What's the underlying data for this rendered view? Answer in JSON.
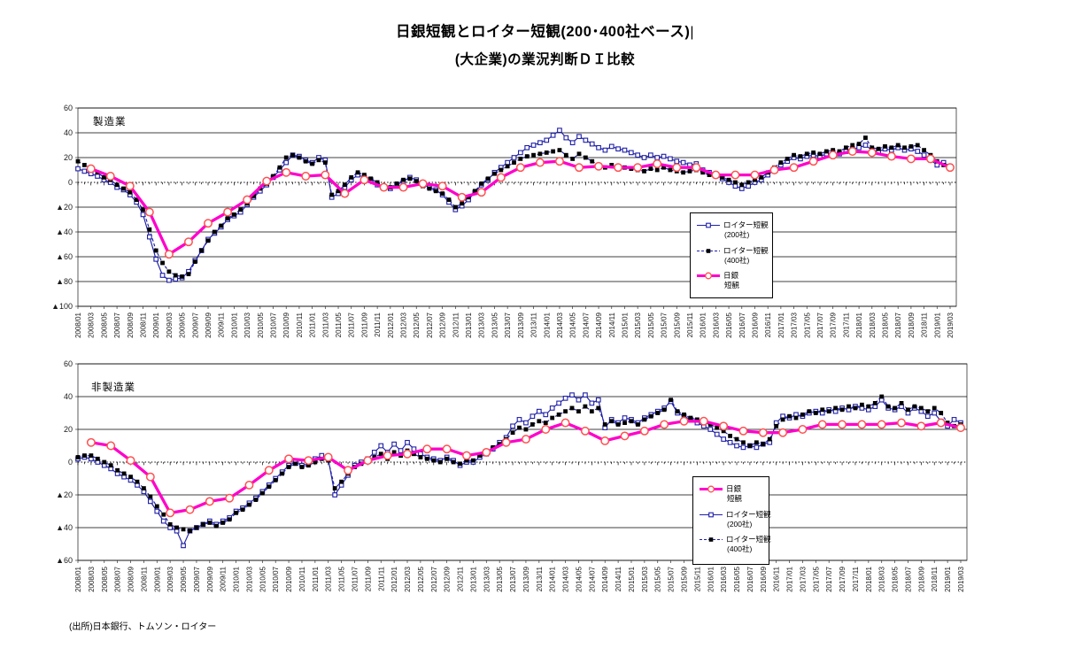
{
  "title": {
    "line1": "日銀短観とロイター短観(200･400社ベース)",
    "cursor": "|",
    "line2": "(大企業)の業況判断ＤＩ比較"
  },
  "source_note": "(出所)日本銀行、トムソン・ロイター",
  "colors": {
    "reuters_blue": "#1f1fa8",
    "reuters400_marker_black": "#000000",
    "boj_magenta": "#ff00cc",
    "boj_marker_stroke": "#ff5050",
    "axis_black": "#1a1a1a"
  },
  "chart_data": {
    "type": "line",
    "x_monthly_start": "2008/01",
    "x_monthly_end": "2019/03",
    "x_tick_labels": [
      "2008/01",
      "2008/03",
      "2008/05",
      "2008/07",
      "2008/09",
      "2008/11",
      "2009/01",
      "2009/03",
      "2009/05",
      "2009/07",
      "2009/09",
      "2009/11",
      "2010/01",
      "2010/03",
      "2010/05",
      "2010/07",
      "2010/09",
      "2010/11",
      "2011/01",
      "2011/03",
      "2011/05",
      "2011/07",
      "2011/09",
      "2011/11",
      "2012/01",
      "2012/03",
      "2012/05",
      "2012/07",
      "2012/09",
      "2012/11",
      "2013/01",
      "2013/03",
      "2013/05",
      "2013/07",
      "2013/09",
      "2013/11",
      "2014/01",
      "2014/03",
      "2014/05",
      "2014/07",
      "2014/09",
      "2014/11",
      "2015/01",
      "2015/03",
      "2015/05",
      "2015/07",
      "2015/09",
      "2015/11",
      "2016/01",
      "2016/03",
      "2016/05",
      "2016/07",
      "2016/09",
      "2016/11",
      "2017/01",
      "2017/03",
      "2017/05",
      "2017/07",
      "2017/09",
      "2017/11",
      "2018/01",
      "2018/03",
      "2018/05",
      "2018/07",
      "2018/09",
      "2018/11",
      "2019/01",
      "2019/03"
    ],
    "panels": [
      {
        "panel_label": "製造業",
        "ylim": [
          -100,
          60
        ],
        "y_tick_labels": [
          "60",
          "40",
          "20",
          "0",
          "▲20",
          "▲40",
          "▲60",
          "▲80",
          "▲100"
        ],
        "legend": [
          {
            "series": "reuters200",
            "label": "ロイター短観",
            "sublabel": "(200社)"
          },
          {
            "series": "reuters400",
            "label": "ロイター短観",
            "sublabel": "(400社)"
          },
          {
            "series": "boj",
            "label": "日銀",
            "sublabel": "短観"
          }
        ],
        "series": {
          "reuters200": {
            "name": "ロイター短観(200社)",
            "monthly": [
              11,
              9,
              7,
              5,
              2,
              0,
              -4,
              -6,
              -10,
              -16,
              -26,
              -44,
              -62,
              -75,
              -79,
              -78,
              -77,
              -72,
              -63,
              -55,
              -46,
              -41,
              -36,
              -30,
              -27,
              -24,
              -18,
              -12,
              -7,
              -2,
              4,
              10,
              16,
              22,
              21,
              18,
              16,
              20,
              18,
              -12,
              -9,
              -4,
              2,
              6,
              4,
              2,
              -2,
              -4,
              -5,
              -2,
              1,
              4,
              2,
              -2,
              -4,
              -6,
              -10,
              -16,
              -22,
              -19,
              -14,
              -8,
              -2,
              2,
              8,
              12,
              16,
              20,
              24,
              28,
              30,
              32,
              34,
              38,
              42,
              36,
              32,
              37,
              34,
              31,
              28,
              26,
              29,
              27,
              26,
              24,
              22,
              20,
              22,
              20,
              21,
              19,
              17,
              16,
              14,
              15,
              10,
              8,
              6,
              3,
              0,
              -3,
              -5,
              -3,
              0,
              2,
              6,
              10,
              14,
              17,
              20,
              19,
              21,
              22,
              21,
              23,
              24,
              23,
              25,
              27,
              28,
              30,
              26,
              25,
              27,
              26,
              28,
              26,
              27,
              25,
              22,
              18,
              14,
              16,
              13
            ]
          },
          "reuters400": {
            "name": "ロイター短観(400社)",
            "monthly": [
              17,
              14,
              12,
              8,
              4,
              2,
              -2,
              -5,
              -8,
              -14,
              -22,
              -38,
              -55,
              -65,
              -72,
              -75,
              -76,
              -74,
              -64,
              -55,
              -47,
              -40,
              -35,
              -29,
              -26,
              -22,
              -17,
              -11,
              -5,
              -1,
              5,
              12,
              20,
              22,
              20,
              17,
              15,
              18,
              16,
              -10,
              -7,
              -2,
              4,
              8,
              6,
              3,
              0,
              -3,
              -4,
              -1,
              2,
              3,
              1,
              -3,
              -5,
              -7,
              -9,
              -14,
              -20,
              -17,
              -12,
              -7,
              -1,
              3,
              7,
              10,
              13,
              16,
              19,
              21,
              22,
              23,
              24,
              25,
              26,
              22,
              19,
              23,
              20,
              17,
              14,
              12,
              14,
              13,
              12,
              11,
              10,
              9,
              11,
              10,
              12,
              10,
              9,
              8,
              9,
              10,
              8,
              6,
              5,
              4,
              2,
              0,
              -2,
              0,
              2,
              4,
              8,
              12,
              16,
              19,
              22,
              21,
              23,
              24,
              23,
              25,
              26,
              25,
              28,
              30,
              31,
              36,
              28,
              27,
              29,
              28,
              30,
              28,
              29,
              30,
              26,
              22,
              17,
              14,
              11
            ]
          },
          "boj": {
            "name": "日銀短観",
            "quarterly_points": [
              [
                2,
                11
              ],
              [
                5,
                5
              ],
              [
                8,
                -3
              ],
              [
                11,
                -24
              ],
              [
                14,
                -58
              ],
              [
                17,
                -48
              ],
              [
                20,
                -33
              ],
              [
                23,
                -24
              ],
              [
                26,
                -14
              ],
              [
                29,
                1
              ],
              [
                32,
                8
              ],
              [
                35,
                5
              ],
              [
                38,
                6
              ],
              [
                41,
                -9
              ],
              [
                44,
                2
              ],
              [
                47,
                -4
              ],
              [
                50,
                -4
              ],
              [
                53,
                -1
              ],
              [
                56,
                -3
              ],
              [
                59,
                -12
              ],
              [
                62,
                -8
              ],
              [
                65,
                4
              ],
              [
                68,
                12
              ],
              [
                71,
                16
              ],
              [
                74,
                17
              ],
              [
                77,
                12
              ],
              [
                80,
                13
              ],
              [
                83,
                12
              ],
              [
                86,
                12
              ],
              [
                89,
                15
              ],
              [
                92,
                12
              ],
              [
                95,
                12
              ],
              [
                98,
                6
              ],
              [
                101,
                6
              ],
              [
                104,
                6
              ],
              [
                107,
                10
              ],
              [
                110,
                12
              ],
              [
                113,
                17
              ],
              [
                116,
                22
              ],
              [
                119,
                25
              ],
              [
                122,
                24
              ],
              [
                125,
                21
              ],
              [
                128,
                19
              ],
              [
                131,
                19
              ],
              [
                134,
                12
              ]
            ]
          }
        }
      },
      {
        "panel_label": "非製造業",
        "ylim": [
          -60,
          60
        ],
        "y_tick_labels": [
          "60",
          "40",
          "20",
          "0",
          "▲20",
          "▲40",
          "▲60"
        ],
        "legend": [
          {
            "series": "boj",
            "label": "日銀",
            "sublabel": "短観"
          },
          {
            "series": "reuters200",
            "label": "ロイター短観",
            "sublabel": "(200社)"
          },
          {
            "series": "reuters400",
            "label": "ロイター短観",
            "sublabel": "(400社)"
          }
        ],
        "series": {
          "reuters200": {
            "name": "ロイター短観(200社)",
            "monthly": [
              2,
              3,
              2,
              0,
              -2,
              -4,
              -7,
              -9,
              -11,
              -14,
              -18,
              -24,
              -30,
              -36,
              -40,
              -42,
              -51,
              -42,
              -40,
              -38,
              -36,
              -38,
              -36,
              -34,
              -30,
              -28,
              -25,
              -22,
              -18,
              -14,
              -10,
              -6,
              -2,
              0,
              -2,
              -1,
              2,
              4,
              2,
              -20,
              -14,
              -8,
              -2,
              0,
              2,
              6,
              10,
              6,
              11,
              7,
              12,
              8,
              5,
              3,
              2,
              1,
              3,
              1,
              -2,
              0,
              0,
              3,
              5,
              8,
              12,
              15,
              22,
              26,
              24,
              28,
              31,
              29,
              33,
              36,
              39,
              41,
              38,
              41,
              36,
              38,
              21,
              26,
              24,
              27,
              26,
              24,
              27,
              29,
              31,
              33,
              37,
              30,
              28,
              26,
              24,
              22,
              20,
              17,
              14,
              12,
              10,
              9,
              10,
              9,
              11,
              12,
              24,
              28,
              27,
              29,
              28,
              30,
              31,
              30,
              32,
              31,
              33,
              32,
              34,
              33,
              32,
              34,
              38,
              33,
              32,
              34,
              30,
              33,
              31,
              28,
              30,
              25,
              22,
              26,
              24
            ]
          },
          "reuters400": {
            "name": "ロイター短観(400社)",
            "monthly": [
              3,
              4,
              4,
              2,
              0,
              -2,
              -5,
              -7,
              -9,
              -12,
              -16,
              -21,
              -27,
              -32,
              -38,
              -40,
              -41,
              -42,
              -40,
              -38,
              -37,
              -39,
              -37,
              -35,
              -31,
              -29,
              -26,
              -23,
              -19,
              -15,
              -11,
              -7,
              -3,
              -1,
              -3,
              -2,
              0,
              2,
              1,
              -16,
              -12,
              -7,
              -3,
              -1,
              1,
              3,
              5,
              2,
              6,
              4,
              7,
              5,
              3,
              2,
              1,
              0,
              2,
              0,
              -1,
              1,
              1,
              4,
              6,
              9,
              11,
              14,
              18,
              21,
              20,
              23,
              25,
              24,
              27,
              29,
              31,
              33,
              31,
              34,
              31,
              33,
              23,
              25,
              23,
              24,
              25,
              23,
              26,
              28,
              30,
              32,
              38,
              31,
              29,
              27,
              26,
              24,
              23,
              21,
              19,
              16,
              14,
              12,
              10,
              12,
              11,
              14,
              22,
              26,
              28,
              27,
              29,
              31,
              30,
              32,
              31,
              33,
              32,
              34,
              33,
              35,
              34,
              36,
              40,
              34,
              33,
              36,
              32,
              34,
              33,
              31,
              33,
              30,
              24,
              22,
              23
            ]
          },
          "boj": {
            "name": "日銀短観",
            "quarterly_points": [
              [
                2,
                12
              ],
              [
                5,
                10
              ],
              [
                8,
                1
              ],
              [
                11,
                -9
              ],
              [
                14,
                -31
              ],
              [
                17,
                -29
              ],
              [
                20,
                -24
              ],
              [
                23,
                -22
              ],
              [
                26,
                -14
              ],
              [
                29,
                -5
              ],
              [
                32,
                2
              ],
              [
                35,
                1
              ],
              [
                38,
                3
              ],
              [
                41,
                -5
              ],
              [
                44,
                1
              ],
              [
                47,
                4
              ],
              [
                50,
                5
              ],
              [
                53,
                8
              ],
              [
                56,
                8
              ],
              [
                59,
                4
              ],
              [
                62,
                6
              ],
              [
                65,
                12
              ],
              [
                68,
                14
              ],
              [
                71,
                20
              ],
              [
                74,
                24
              ],
              [
                77,
                19
              ],
              [
                80,
                13
              ],
              [
                83,
                16
              ],
              [
                86,
                19
              ],
              [
                89,
                23
              ],
              [
                92,
                25
              ],
              [
                95,
                25
              ],
              [
                98,
                22
              ],
              [
                101,
                19
              ],
              [
                104,
                18
              ],
              [
                107,
                18
              ],
              [
                110,
                20
              ],
              [
                113,
                23
              ],
              [
                116,
                23
              ],
              [
                119,
                23
              ],
              [
                122,
                23
              ],
              [
                125,
                24
              ],
              [
                128,
                22
              ],
              [
                131,
                24
              ],
              [
                134,
                21
              ]
            ]
          }
        }
      }
    ]
  }
}
